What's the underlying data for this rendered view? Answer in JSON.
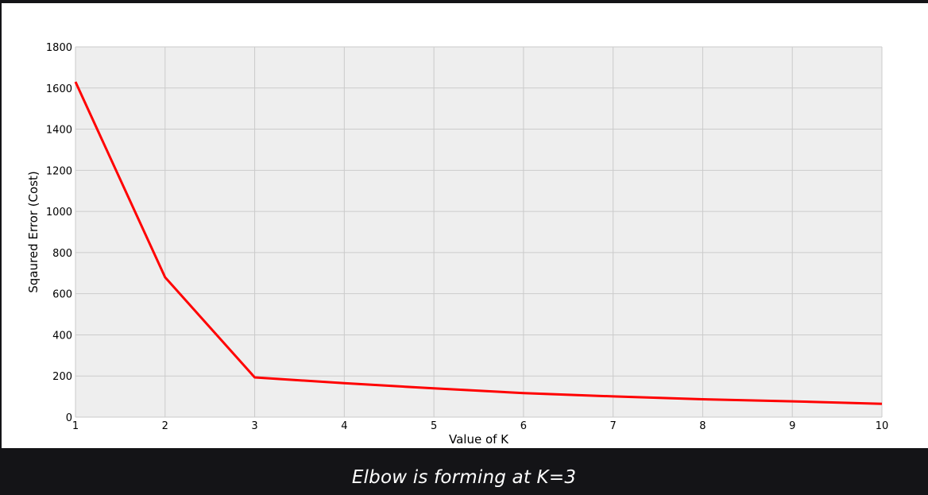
{
  "chart_data": {
    "type": "line",
    "title": "",
    "xlabel": "Value of K",
    "ylabel": "Sqaured Error (Cost)",
    "xlim": [
      1,
      10
    ],
    "ylim": [
      0,
      1800
    ],
    "xticks": [
      "1",
      "2",
      "3",
      "4",
      "5",
      "6",
      "7",
      "8",
      "9",
      "10"
    ],
    "yticks": [
      "0",
      "200",
      "400",
      "600",
      "800",
      "1000",
      "1200",
      "1400",
      "1600",
      "1800"
    ],
    "grid": true,
    "series": [
      {
        "color": "#ff0000",
        "x": [
          1,
          2,
          3,
          4,
          5,
          6,
          7,
          8,
          9,
          10
        ],
        "y": [
          1630,
          680,
          193,
          165,
          140,
          117,
          101,
          87,
          77,
          65
        ]
      }
    ],
    "colors": {
      "plot_background": "#eeeeee",
      "grid": "#cbcbcb",
      "line": "#ff0000",
      "page_background": "#141417"
    }
  },
  "caption": "Elbow is forming at K=3"
}
